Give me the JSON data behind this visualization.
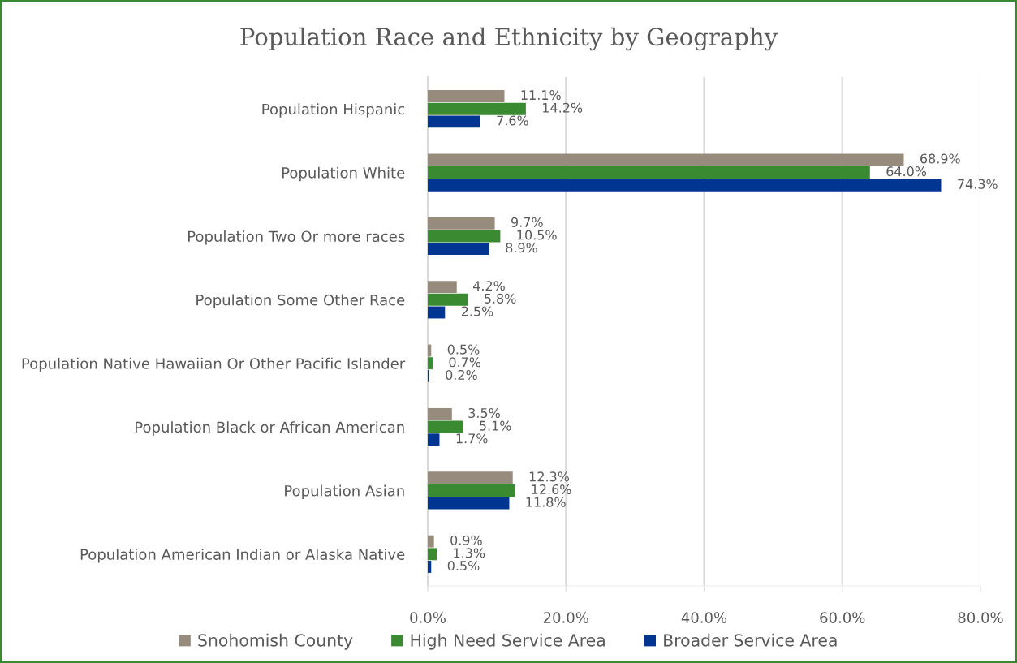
{
  "chart_data": {
    "type": "bar",
    "orientation": "horizontal",
    "title": "Population Race and Ethnicity by Geography",
    "categories": [
      "Population Hispanic",
      "Population White",
      "Population Two Or more races",
      "Population Some Other Race",
      "Population Native Hawaiian Or Other Pacific Islander",
      "Population Black or African American",
      "Population Asian",
      "Population American Indian or Alaska Native"
    ],
    "series": [
      {
        "name": "Snohomish County",
        "color": "#968b7d",
        "values": [
          11.1,
          68.9,
          9.7,
          4.2,
          0.5,
          3.5,
          12.3,
          0.9
        ],
        "value_labels": [
          "11.1%",
          "68.9%",
          "9.7%",
          "4.2%",
          "0.5%",
          "3.5%",
          "12.3%",
          "0.9%"
        ]
      },
      {
        "name": "High Need Service Area",
        "color": "#3a8a32",
        "values": [
          14.2,
          64.0,
          10.5,
          5.8,
          0.7,
          5.1,
          12.6,
          1.3
        ],
        "value_labels": [
          "14.2%",
          "64.0%",
          "10.5%",
          "5.8%",
          "0.7%",
          "5.1%",
          "12.6%",
          "1.3%"
        ]
      },
      {
        "name": "Broader Service Area",
        "color": "#003591",
        "values": [
          7.6,
          74.3,
          8.9,
          2.5,
          0.2,
          1.7,
          11.8,
          0.5
        ],
        "value_labels": [
          "7.6%",
          "74.3%",
          "8.9%",
          "2.5%",
          "0.2%",
          "1.7%",
          "11.8%",
          "0.5%"
        ]
      }
    ],
    "xlim": [
      0,
      80
    ],
    "xticks": [
      {
        "value": 0,
        "label": "0.0%"
      },
      {
        "value": 20,
        "label": "20.0%"
      },
      {
        "value": 40,
        "label": "40.0%"
      },
      {
        "value": 60,
        "label": "60.0%"
      },
      {
        "value": 80,
        "label": "80.0%"
      }
    ],
    "grid": "x",
    "legend": "bottom"
  }
}
